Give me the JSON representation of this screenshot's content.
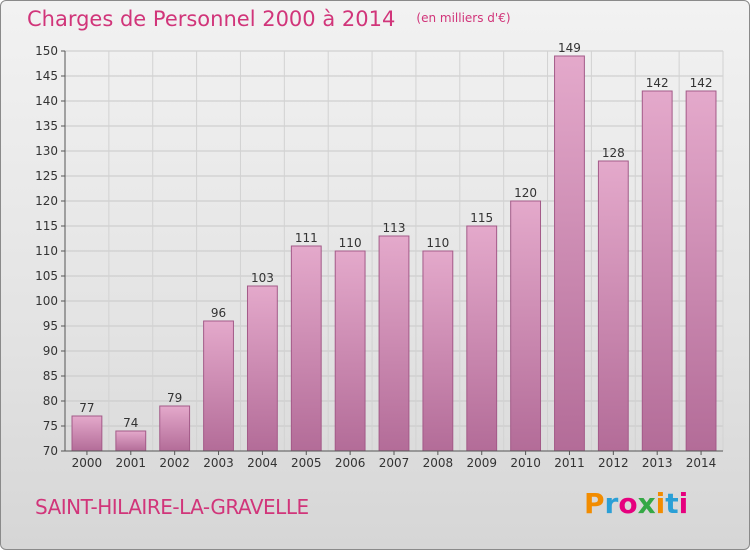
{
  "header": {
    "title": "Charges de Personnel 2000 à 2014",
    "subtitle": "(en milliers d'€)"
  },
  "footer": {
    "commune": "SAINT-HILAIRE-LA-GRAVELLE",
    "logo_text": "Proxiti",
    "logo_colors": [
      "#f28c00",
      "#2a9fd6",
      "#e6007e",
      "#35a845",
      "#f28c00",
      "#2a9fd6",
      "#e6007e"
    ]
  },
  "colors": {
    "bar_top": "#e4a9cb",
    "bar_bottom": "#b36c98",
    "bar_edge": "#a35a88",
    "title": "#d1357a"
  },
  "chart_data": {
    "type": "bar",
    "categories": [
      "2000",
      "2001",
      "2002",
      "2003",
      "2004",
      "2005",
      "2006",
      "2007",
      "2008",
      "2009",
      "2010",
      "2011",
      "2012",
      "2013",
      "2014"
    ],
    "values": [
      77,
      74,
      79,
      96,
      103,
      111,
      110,
      113,
      110,
      115,
      120,
      149,
      128,
      142,
      142
    ],
    "ylim": [
      70,
      150
    ],
    "yticks": [
      70,
      75,
      80,
      85,
      90,
      95,
      100,
      105,
      110,
      115,
      120,
      125,
      130,
      135,
      140,
      145,
      150
    ],
    "grid": true,
    "data_labels": true
  }
}
